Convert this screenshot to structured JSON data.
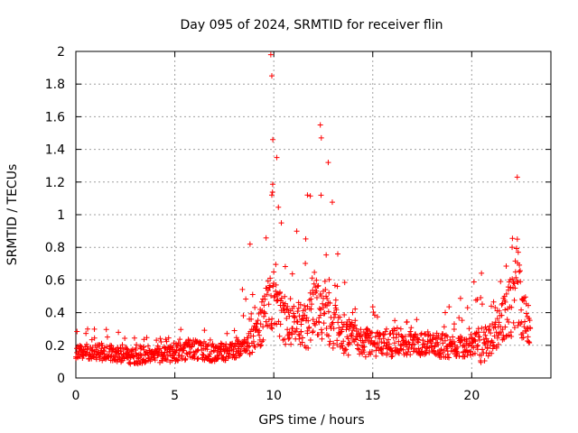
{
  "chart_data": {
    "type": "scatter",
    "title": "Day 095 of 2024, SRMTID for receiver flin",
    "xlabel": "GPS time / hours",
    "ylabel": "SRMTID / TECUs",
    "xlim": [
      0,
      24
    ],
    "ylim": [
      0,
      2
    ],
    "xticks": [
      "0",
      "5",
      "10",
      "15",
      "20"
    ],
    "yticks": [
      "0",
      "0.2",
      "0.4",
      "0.6",
      "0.8",
      "1",
      "1.2",
      "1.4",
      "1.6",
      "1.8",
      "2"
    ],
    "grid": true,
    "marker": "+",
    "color": "#ff0000",
    "x_range_of_data": [
      0,
      23
    ],
    "x_step": 0.05,
    "envelope": {
      "x": [
        0,
        1,
        2,
        3,
        4,
        5,
        6,
        7,
        8,
        8.5,
        9,
        9.5,
        9.8,
        10,
        10.5,
        11,
        11.5,
        12,
        12.5,
        13,
        13.5,
        14,
        15,
        16,
        17,
        18,
        19,
        20,
        20.5,
        21,
        21.5,
        22,
        22.3,
        22.6,
        23
      ],
      "low": [
        0.12,
        0.11,
        0.1,
        0.08,
        0.09,
        0.1,
        0.11,
        0.1,
        0.11,
        0.13,
        0.15,
        0.22,
        0.3,
        0.28,
        0.2,
        0.18,
        0.16,
        0.2,
        0.22,
        0.18,
        0.14,
        0.13,
        0.12,
        0.13,
        0.14,
        0.13,
        0.12,
        0.13,
        0.08,
        0.15,
        0.2,
        0.25,
        0.3,
        0.22,
        0.2
      ],
      "typical": [
        0.18,
        0.18,
        0.17,
        0.15,
        0.15,
        0.18,
        0.2,
        0.18,
        0.19,
        0.22,
        0.3,
        0.42,
        0.55,
        0.5,
        0.42,
        0.4,
        0.38,
        0.45,
        0.5,
        0.42,
        0.33,
        0.28,
        0.24,
        0.23,
        0.23,
        0.24,
        0.22,
        0.24,
        0.25,
        0.28,
        0.38,
        0.55,
        0.7,
        0.45,
        0.3
      ],
      "high": [
        0.35,
        0.3,
        0.3,
        0.25,
        0.25,
        0.3,
        0.35,
        0.32,
        0.35,
        0.75,
        0.55,
        1.0,
        2.0,
        1.35,
        0.9,
        1.2,
        1.15,
        1.1,
        1.55,
        1.3,
        0.7,
        0.55,
        0.45,
        0.4,
        0.38,
        0.48,
        0.45,
        0.62,
        0.65,
        0.5,
        0.75,
        1.2,
        1.25,
        0.65,
        0.42
      ]
    },
    "spikes": [
      {
        "x": 9.85,
        "y": 1.98
      },
      {
        "x": 9.9,
        "y": 1.85
      },
      {
        "x": 9.95,
        "y": 1.46
      },
      {
        "x": 9.9,
        "y": 1.12
      },
      {
        "x": 10.15,
        "y": 1.35
      },
      {
        "x": 12.35,
        "y": 1.55
      },
      {
        "x": 12.4,
        "y": 1.47
      },
      {
        "x": 12.75,
        "y": 1.32
      },
      {
        "x": 11.7,
        "y": 1.12
      },
      {
        "x": 22.3,
        "y": 1.23
      },
      {
        "x": 8.8,
        "y": 0.82
      }
    ]
  }
}
